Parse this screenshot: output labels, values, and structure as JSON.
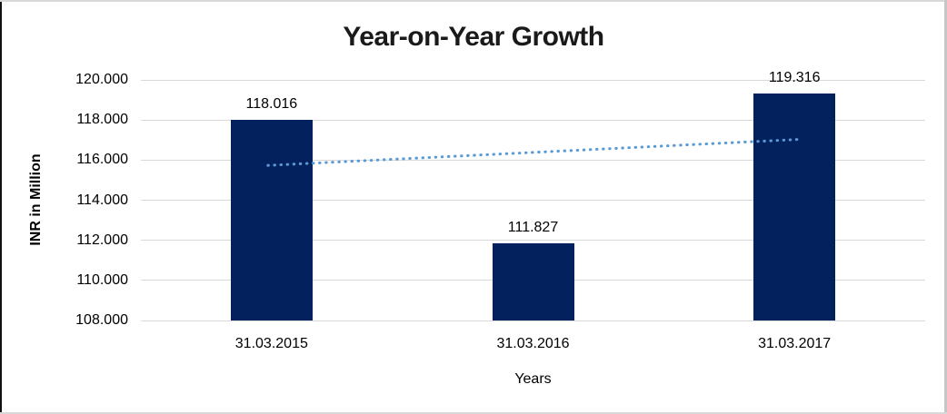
{
  "chart_data": {
    "type": "bar",
    "title": "Year-on-Year Growth",
    "xlabel": "Years",
    "ylabel": "INR in Million",
    "categories": [
      "31.03.2015",
      "31.03.2016",
      "31.03.2017"
    ],
    "values": [
      118.016,
      111.827,
      119.316
    ],
    "value_labels": [
      "118.016",
      "111.827",
      "119.316"
    ],
    "ylim": [
      108,
      120
    ],
    "y_ticks": [
      {
        "value": 108,
        "label": "108.000"
      },
      {
        "value": 110,
        "label": "110.000"
      },
      {
        "value": 112,
        "label": "112.000"
      },
      {
        "value": 114,
        "label": "114.000"
      },
      {
        "value": 116,
        "label": "116.000"
      },
      {
        "value": 118,
        "label": "118.000"
      },
      {
        "value": 120,
        "label": "120.000"
      }
    ],
    "grid": true,
    "legend": "none",
    "bar_color": "#03215C",
    "gridline_color": "#D9D9D9",
    "title_color": "#1A1A1A",
    "text_color": "#000000",
    "trendline": {
      "type": "linear",
      "style": "dotted",
      "color": "#5B9BD5",
      "start_value": 115.736,
      "end_value": 117.036
    }
  }
}
